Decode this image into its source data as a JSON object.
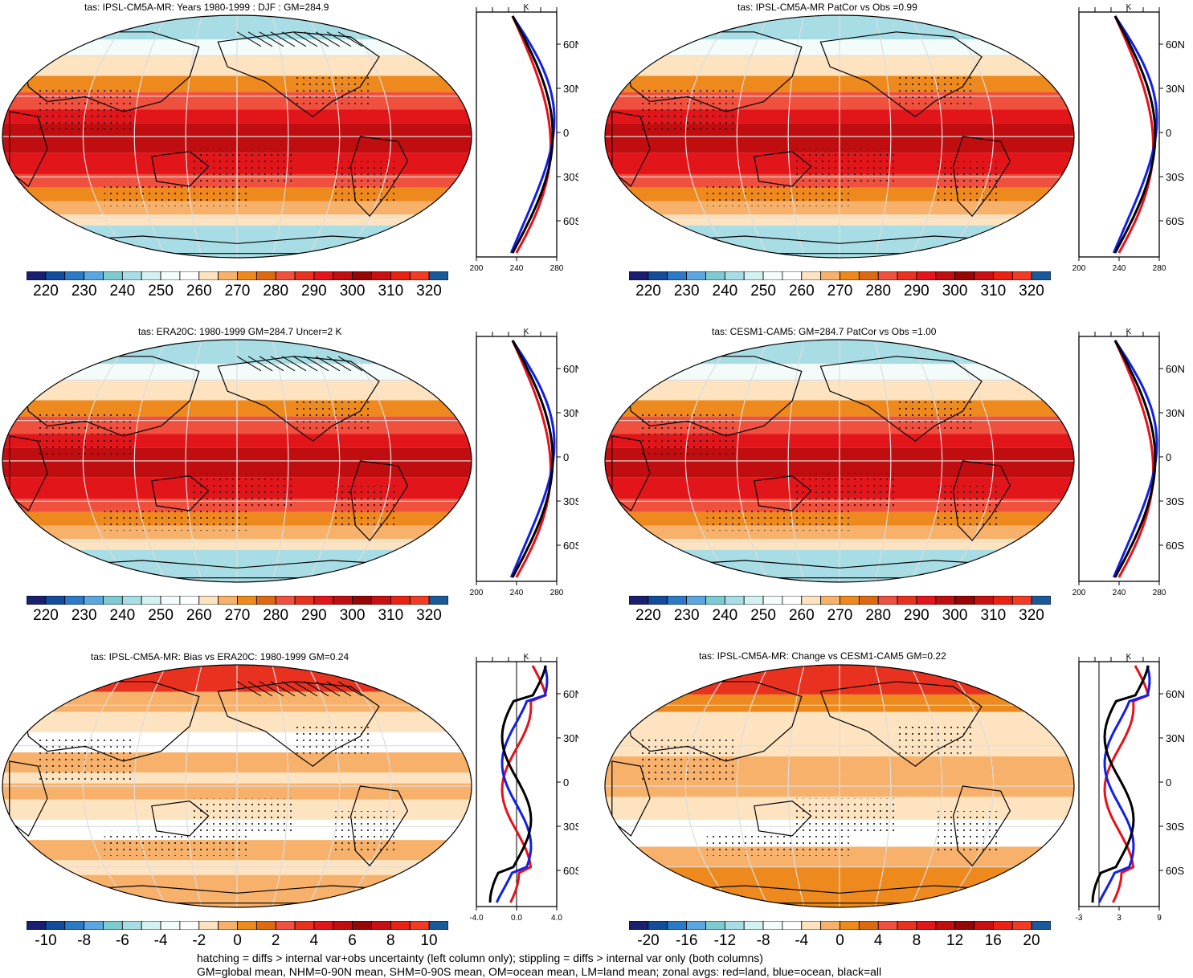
{
  "panels": [
    {
      "title": "tas: IPSL-CM5A-MR: Years 1980-1999 : DJF : GM=284.9",
      "kind": "abs",
      "palette": "abs",
      "hatch": true
    },
    {
      "title": "tas: IPSL-CM5A-MR PatCor vs Obs =0.99",
      "kind": "abs",
      "palette": "abs",
      "hatch": false
    },
    {
      "title": "tas: ERA20C: 1980-1999 GM=284.7 Uncer=2 K",
      "kind": "abs",
      "palette": "abs",
      "hatch": true
    },
    {
      "title": "tas: CESM1-CAM5: GM=284.7 PatCor vs Obs =1.00",
      "kind": "abs",
      "palette": "abs",
      "hatch": false
    },
    {
      "title": "tas: IPSL-CM5A-MR: Bias vs ERA20C: 1980-1999 GM=0.24",
      "kind": "bias",
      "palette": "diff",
      "hatch": true
    },
    {
      "title": "tas: IPSL-CM5A-MR: Change vs CESM1-CAM5 GM=0.22",
      "kind": "change",
      "palette": "diff",
      "hatch": false
    }
  ],
  "colorbars": [
    {
      "labels": [
        "220",
        "230",
        "240",
        "250",
        "260",
        "270",
        "280",
        "290",
        "300",
        "310",
        "320"
      ]
    },
    {
      "labels": [
        "220",
        "230",
        "240",
        "250",
        "260",
        "270",
        "280",
        "290",
        "300",
        "310",
        "320"
      ]
    },
    {
      "labels": [
        "220",
        "230",
        "240",
        "250",
        "260",
        "270",
        "280",
        "290",
        "300",
        "310",
        "320"
      ]
    },
    {
      "labels": [
        "220",
        "230",
        "240",
        "250",
        "260",
        "270",
        "280",
        "290",
        "300",
        "310",
        "320"
      ]
    },
    {
      "labels": [
        "-10",
        "-8",
        "-6",
        "-4",
        "-2",
        "0",
        "2",
        "4",
        "6",
        "8",
        "10"
      ]
    },
    {
      "labels": [
        "-20",
        "-16",
        "-12",
        "-8",
        "-4",
        "0",
        "4",
        "8",
        "12",
        "16",
        "20"
      ]
    }
  ],
  "profiles": [
    {
      "unit": "K",
      "lat_labels": [
        "60N",
        "30N",
        "0",
        "30S",
        "60S"
      ],
      "x_ticks": [
        "200",
        "240",
        "280"
      ]
    },
    {
      "unit": "K",
      "lat_labels": [
        "60N",
        "30N",
        "0",
        "30S",
        "60S"
      ],
      "x_ticks": [
        "200",
        "240",
        "280"
      ]
    },
    {
      "unit": "K",
      "lat_labels": [
        "60N",
        "30N",
        "0",
        "30S",
        "60S"
      ],
      "x_ticks": [
        "200",
        "240",
        "280"
      ]
    },
    {
      "unit": "K",
      "lat_labels": [
        "60N",
        "30N",
        "0",
        "30S",
        "60S"
      ],
      "x_ticks": [
        "200",
        "240",
        "280"
      ]
    },
    {
      "unit": "K",
      "lat_labels": [
        "60N",
        "30N",
        "0",
        "30S",
        "60S"
      ],
      "x_ticks": [
        "-4.0",
        "0.0",
        "4.0"
      ]
    },
    {
      "unit": "K",
      "lat_labels": [
        "60N",
        "30N",
        "0",
        "30S",
        "60S"
      ],
      "x_ticks": [
        "-3",
        "3",
        "9"
      ]
    }
  ],
  "colors": {
    "abs": [
      "#1b1f70",
      "#134c9a",
      "#2c7ac6",
      "#5aa6e0",
      "#7dcad1",
      "#a8dde5",
      "#d3f1f1",
      "#f3fbfb",
      "#ffffff",
      "#fde3c0",
      "#f7b16a",
      "#ee8a1d",
      "#dd6a12",
      "#f0503e",
      "#e8321f",
      "#e2151a",
      "#c00d10",
      "#960606",
      "#c80f12",
      "#ea2214",
      "#f23a25",
      "#1a5a9a"
    ],
    "diff": [
      "#1b1f70",
      "#134c9a",
      "#2c7ac6",
      "#5aa6e0",
      "#7dcad1",
      "#a8dde5",
      "#d3f1f1",
      "#f3fbfb",
      "#ffffff",
      "#fde3c0",
      "#f7b16a",
      "#ee8a1d",
      "#dd6a12",
      "#f0503e",
      "#e8321f",
      "#e2151a",
      "#c00d10",
      "#960606",
      "#c80f12",
      "#ea2214",
      "#f23a25",
      "#1a5a9a"
    ]
  },
  "footnotes": [
    "hatching = diffs > internal var+obs uncertainty (left column only); stippling = diffs > internal var only (both columns)",
    "GM=global mean, NHM=0-90N mean, SHM=0-90S mean, OM=ocean mean, LM=land mean; zonal avgs: red=land, blue=ocean, black=all"
  ]
}
